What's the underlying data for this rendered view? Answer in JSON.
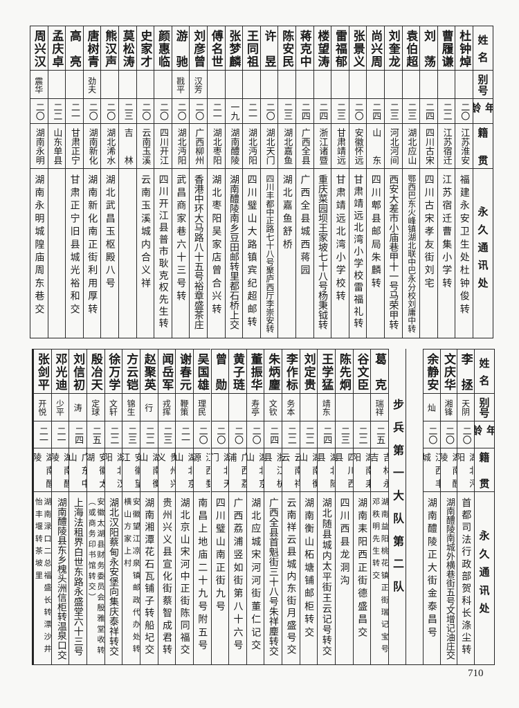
{
  "header": {
    "name": "姓名",
    "alias": "别号",
    "age": "年龄",
    "native": "籍贯",
    "address": "永久通讯处"
  },
  "top_table": {
    "rows": [
      {
        "name": "杜钟焯",
        "alias": "",
        "age": "二〇",
        "native": "江苏淮安",
        "address": "福建永安卫生处杜钟俊转"
      },
      {
        "name": "曹履谦",
        "alias": "",
        "age": "二二",
        "native": "江苏宿迁",
        "address": "江苏宿迁曹集小学转"
      },
      {
        "name": "刘荡",
        "alias": "",
        "age": "二四",
        "native": "四川古宋",
        "address": "四川古宋孝友街刘宅"
      },
      {
        "name": "袁伯超",
        "alias": "",
        "age": "二三",
        "native": "湖北应山",
        "address": "鄂西巴东火峰镇湖北联中巴永分校刘庸中转"
      },
      {
        "name": "刘奎龙",
        "alias": "",
        "age": "二三",
        "native": "河北河间",
        "address": "西安大差市小庙巷甲十一号马荣甲转"
      },
      {
        "name": "尚兴周",
        "alias": "",
        "age": "二四",
        "native": "山东",
        "address": "四川郫县邮局朱麟转"
      },
      {
        "name": "张景义",
        "alias": "",
        "age": "二〇",
        "native": "安徽怀远",
        "address": "甘肃靖远北湾小学校雷福礼转"
      },
      {
        "name": "雷福郁",
        "alias": "",
        "age": "二三",
        "native": "甘肃靖远",
        "address": "甘肃靖远北湾小学校转"
      },
      {
        "name": "楼望涛",
        "alias": "",
        "age": "二四",
        "native": "浙江诸暨",
        "address": "重庆菜园坝王家坡七十八号杨秉钺转"
      },
      {
        "name": "蒋克中",
        "alias": "",
        "age": "二四",
        "native": "广西全县",
        "address": "广西全县城西蒋园"
      },
      {
        "name": "陈安民",
        "alias": "",
        "age": "二三",
        "native": "湖北嘉鱼",
        "address": "湖北嘉鱼舒桥"
      },
      {
        "name": "许昱",
        "alias": "",
        "age": "二〇",
        "native": "湖北天门",
        "address": "四川丰都中正路七十八号聚庐西厅李崇安转"
      },
      {
        "name": "王同祖",
        "alias": "",
        "age": "二一",
        "native": "湖北沔阳",
        "address": "四川璧山大路镇宾纪超邮转"
      },
      {
        "name": "张梦麟",
        "alias": "",
        "age": "一九",
        "native": "湖南醴陵",
        "address": "湖南醴陵南乡豆田邮转里都石桥上交"
      },
      {
        "name": "傅名世",
        "alias": "",
        "age": "二一",
        "native": "湖北枣阳",
        "address": "湖北枣阳吴家店曾合兴转"
      },
      {
        "name": "刘彦曾",
        "alias": "汉芳",
        "age": "二〇",
        "native": "广西柳州",
        "address": "香港中环大马路八十五号裕章盛茶庄"
      },
      {
        "name": "游驰",
        "alias": "戡平",
        "age": "二〇",
        "native": "湖北沔阳",
        "address": "武昌商家巷六十三号转"
      },
      {
        "name": "颜惠临",
        "alias": "",
        "age": "二〇",
        "native": "四川开江",
        "address": "四川开江县普市耿克权先生转"
      },
      {
        "name": "史家才",
        "alias": "",
        "age": "二〇",
        "native": "云南玉溪",
        "address": "云南玉溪城内合义祥"
      },
      {
        "name": "莫松涛",
        "alias": "",
        "age": "二三",
        "native": "吉林",
        "address": ""
      },
      {
        "name": "熊汉声",
        "alias": "",
        "age": "二〇",
        "native": "湖北浠水",
        "address": "湖北武昌玉枢殿八号"
      },
      {
        "name": "唐树青",
        "alias": "劲夫",
        "age": "二〇",
        "native": "湖南新化",
        "address": "湖南新化南正街利用厚转"
      },
      {
        "name": "高亮",
        "alias": "",
        "age": "二一",
        "native": "甘肃正宁",
        "address": "甘肃正宁旧县城光裕和交"
      },
      {
        "name": "孟庆卓",
        "alias": "",
        "age": "二二",
        "native": "山东单县",
        "address": ""
      },
      {
        "name": "周兴汉",
        "alias": "震华",
        "age": "二〇",
        "native": "湖南永明",
        "address": "湖南永明城隍庙周东巷交"
      }
    ]
  },
  "bottom_table": {
    "rows_first": [
      {
        "name": "李拯",
        "alias": "天阴",
        "age": "二〇",
        "native": "湖北沔阳",
        "address": "首都司法行政部贺科长涤尘转"
      },
      {
        "name": "文庆华",
        "alias": "湘锋",
        "age": "二〇",
        "native": "湖南醴陵",
        "address": "湖南醴陵南城外横巷街五号文增记油庄交"
      },
      {
        "name": "余静安",
        "alias": "灿",
        "age": "二〇",
        "native": "江西丰城",
        "address": "湖南醴陵正大街金泰昌号"
      }
    ],
    "section_title": "步兵第一大队第二队",
    "rows_second": [
      {
        "name": "葛克",
        "alias": "瑞祥",
        "age": "二五",
        "native": "吉林永吉",
        "address": "湖南益阳桃花镇正街瑞记宝号\n邓秩明先生转交"
      },
      {
        "name": "谷文臣",
        "alias": "",
        "age": "二二",
        "native": "湖南耒阳",
        "address": "湖南耒阳西正街德盛昌交"
      },
      {
        "name": "陈先炯",
        "alias": "",
        "age": "二三",
        "native": "四川西县",
        "address": "四川西县龙洞沟"
      },
      {
        "name": "王学猛",
        "alias": "靖东",
        "age": "二四",
        "native": "湖北随县",
        "address": "湖北随县城内太平街王云记号转交"
      },
      {
        "name": "刘定贵",
        "alias": "",
        "age": "二二",
        "native": "湖南衡山",
        "address": "湖南衡山柘塘铺邮柜转交"
      },
      {
        "name": "李作标",
        "alias": "务本",
        "age": "二二",
        "native": "云南祥云",
        "address": "云南祥云县城内东街月盛号交"
      },
      {
        "name": "朱炳麈",
        "alias": "文钦",
        "age": "二四",
        "native": "浙江杭县",
        "address": "广西全县首魁街三十八号朱祥麈转交"
      },
      {
        "name": "董振华",
        "alias": "寿亭",
        "age": "二〇",
        "native": "湖北京山",
        "address": "湖北应城宋河河街董仁记交"
      },
      {
        "name": "黄子琏",
        "alias": "",
        "age": "二〇",
        "native": "广西荔浦",
        "address": "广西荔浦竖如街第八十六号"
      },
      {
        "name": "曾勋",
        "alias": "",
        "age": "二〇",
        "native": "湖北天门",
        "address": "四川璧山南正街九号"
      },
      {
        "name": "吴国雄",
        "alias": "理民",
        "age": "二〇",
        "native": "江西婺源",
        "address": "南昌上地庙二十九号附五号"
      },
      {
        "name": "谢春元",
        "alias": "鞭策",
        "age": "二一",
        "native": "湖北京山",
        "address": "湖北京山宋河中正街陈同福交"
      },
      {
        "name": "闻岳军",
        "alias": "戎挥",
        "age": "二三",
        "native": "贵州兴义",
        "address": "贵州兴义县宣化街蔡智成君转"
      },
      {
        "name": "赵聚英",
        "alias": "行",
        "age": "二二",
        "native": "湖南衡山",
        "address": "湖南湘潭花石瓦铺子转船圮交"
      },
      {
        "name": "方云铠",
        "alias": "锦生",
        "age": "二三",
        "native": "安徽望江",
        "address": "安徽望江凉泉镇邮政代办处转\n横山方家上村"
      },
      {
        "name": "徐万学",
        "alias": "文轩",
        "age": "二二",
        "native": "湖北汉阳",
        "address": "湖北汉阳蔡甸永安堡向集庆泰祥转交"
      },
      {
        "name": "殷冶天",
        "alias": "定球",
        "age": "二五",
        "native": "安徽太湖",
        "address": "安徽太湖县财务委员会殷雅堂收转\n（或商务印书馆转交）"
      },
      {
        "name": "刘信初",
        "alias": "涛",
        "age": "二四",
        "native": "广东中山",
        "address": "上海法租界白世东路永盛堂六十三号"
      },
      {
        "name": "邓光迪",
        "alias": "少平",
        "age": "二一",
        "native": "湖南醴陵",
        "address": "湖南醴陵县东乡槐头洲信柜转温泉口交"
      },
      {
        "name": "张剑平",
        "alias": "开悦",
        "age": "二一",
        "native": "湖南醴陵",
        "address": "湖南渌口二总福盛长转漂沙井\n怡丰堰转茶坡里"
      }
    ]
  },
  "page_number": "710"
}
